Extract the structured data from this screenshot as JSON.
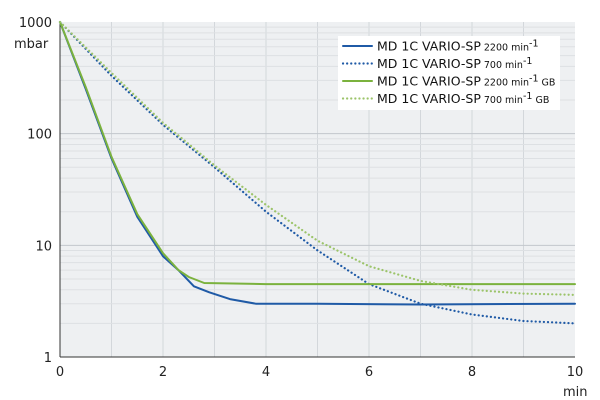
{
  "chart_data": {
    "type": "line",
    "y_scale": "log",
    "xlim": [
      0,
      10
    ],
    "ylim": [
      1,
      1000
    ],
    "x_unit": "min",
    "y_unit": "mbar",
    "grid": true,
    "legend_placement": "top-right",
    "x_ticks": [
      {
        "value": 0,
        "label": "0"
      },
      {
        "value": 2,
        "label": "2"
      },
      {
        "value": 4,
        "label": "4"
      },
      {
        "value": 6,
        "label": "6"
      },
      {
        "value": 8,
        "label": "8"
      },
      {
        "value": 10,
        "label": "10"
      }
    ],
    "y_ticks": [
      {
        "value": 1,
        "label": "1"
      },
      {
        "value": 10,
        "label": "10"
      },
      {
        "value": 100,
        "label": "100"
      },
      {
        "value": 1000,
        "label": "1000"
      }
    ],
    "series": [
      {
        "name_main": "MD 1C VARIO-SP",
        "name_speed": "2200 min",
        "name_exp": "-1",
        "name_suffix": "",
        "color": "#1f5aa6",
        "style": "solid",
        "points": [
          [
            0,
            1000
          ],
          [
            0.5,
            250
          ],
          [
            1,
            60
          ],
          [
            1.5,
            18
          ],
          [
            2,
            8
          ],
          [
            2.3,
            6
          ],
          [
            2.6,
            4.3
          ],
          [
            2.9,
            3.8
          ],
          [
            3.3,
            3.3
          ],
          [
            3.8,
            3.0
          ],
          [
            5,
            3.0
          ],
          [
            7,
            2.95
          ],
          [
            10,
            3.0
          ]
        ]
      },
      {
        "name_main": "MD 1C VARIO-SP",
        "name_speed": "700 min",
        "name_exp": "-1",
        "name_suffix": "",
        "color": "#1f5aa6",
        "style": "dotted",
        "points": [
          [
            0,
            1000
          ],
          [
            1,
            330
          ],
          [
            2,
            120
          ],
          [
            3,
            50
          ],
          [
            4,
            20
          ],
          [
            5,
            9
          ],
          [
            6,
            4.5
          ],
          [
            7,
            3.0
          ],
          [
            8,
            2.4
          ],
          [
            9,
            2.1
          ],
          [
            10,
            2.0
          ]
        ]
      },
      {
        "name_main": "MD 1C VARIO-SP",
        "name_speed": "2200 min",
        "name_exp": "-1",
        "name_suffix": "GB",
        "color": "#7bb23e",
        "style": "solid",
        "points": [
          [
            0,
            1000
          ],
          [
            0.5,
            260
          ],
          [
            1,
            62
          ],
          [
            1.5,
            19
          ],
          [
            2,
            8.5
          ],
          [
            2.3,
            6
          ],
          [
            2.5,
            5.2
          ],
          [
            2.8,
            4.6
          ],
          [
            4,
            4.5
          ],
          [
            10,
            4.5
          ]
        ]
      },
      {
        "name_main": "MD 1C VARIO-SP",
        "name_speed": "700 min",
        "name_exp": "-1",
        "name_suffix": "GB",
        "color": "#9cc46a",
        "style": "dotted",
        "points": [
          [
            0,
            1000
          ],
          [
            1,
            350
          ],
          [
            2,
            125
          ],
          [
            3,
            52
          ],
          [
            4,
            23
          ],
          [
            5,
            11
          ],
          [
            6,
            6.5
          ],
          [
            7,
            4.8
          ],
          [
            8,
            4.0
          ],
          [
            9,
            3.7
          ],
          [
            10,
            3.6
          ]
        ]
      }
    ]
  }
}
